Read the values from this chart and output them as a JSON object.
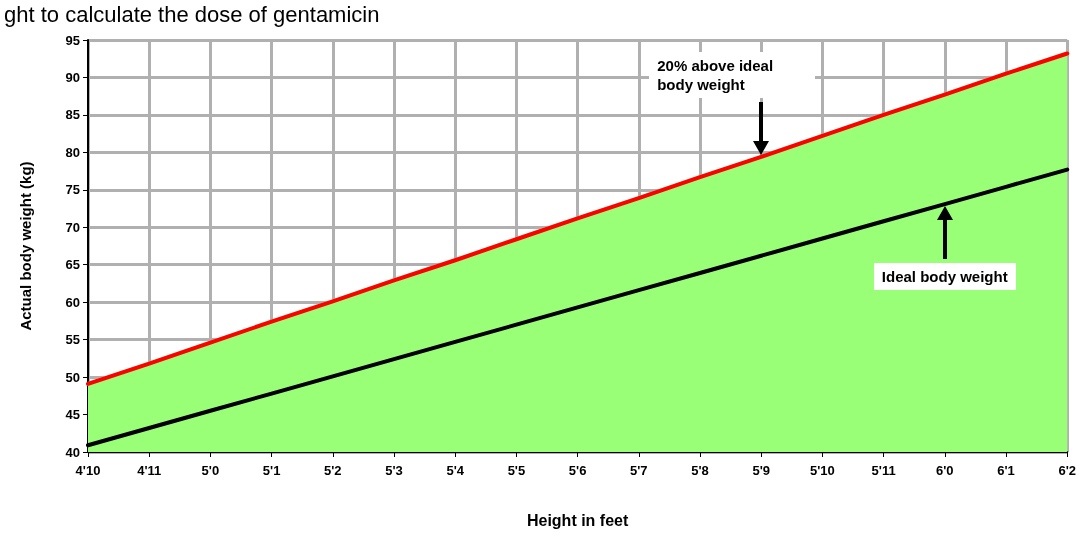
{
  "chart_data": {
    "type": "line",
    "xlabel": "Height in feet",
    "ylabel": "Actual body weight (kg)",
    "categories": [
      "4'10",
      "4'11",
      "5'0",
      "5'1",
      "5'2",
      "5'3",
      "5'4",
      "5'5",
      "5'6",
      "5'7",
      "5'8",
      "5'9",
      "5'10",
      "5'11",
      "6'0",
      "6'1",
      "6'2"
    ],
    "series": [
      {
        "type": "area",
        "color": "#99ff77",
        "values": [
          49.1,
          51.8,
          54.6,
          57.4,
          60.1,
          62.9,
          65.6,
          68.4,
          71.2,
          73.9,
          76.7,
          79.4,
          82.2,
          85.0,
          87.7,
          90.5,
          93.2
        ]
      },
      {
        "color": "#ff0000",
        "values": [
          49.1,
          51.8,
          54.6,
          57.4,
          60.1,
          62.9,
          65.6,
          68.4,
          71.2,
          73.9,
          76.7,
          79.4,
          82.2,
          85.0,
          87.7,
          90.5,
          93.2
        ]
      },
      {
        "color": "#000000",
        "values": [
          40.9,
          43.2,
          45.5,
          47.8,
          50.1,
          52.4,
          54.7,
          57.0,
          59.3,
          61.6,
          63.9,
          66.2,
          68.5,
          70.8,
          73.1,
          75.4,
          77.7
        ]
      }
    ],
    "ylim": [
      40,
      95
    ],
    "yticks": [
      40,
      45,
      50,
      55,
      60,
      65,
      70,
      75,
      80,
      85,
      90,
      95
    ],
    "grid": true,
    "marker": "none",
    "line_style": "solid",
    "annotations": [
      "ght to calculate the dose of gentamicin",
      "20% above ideal body weight",
      "Ideal body weight"
    ]
  }
}
